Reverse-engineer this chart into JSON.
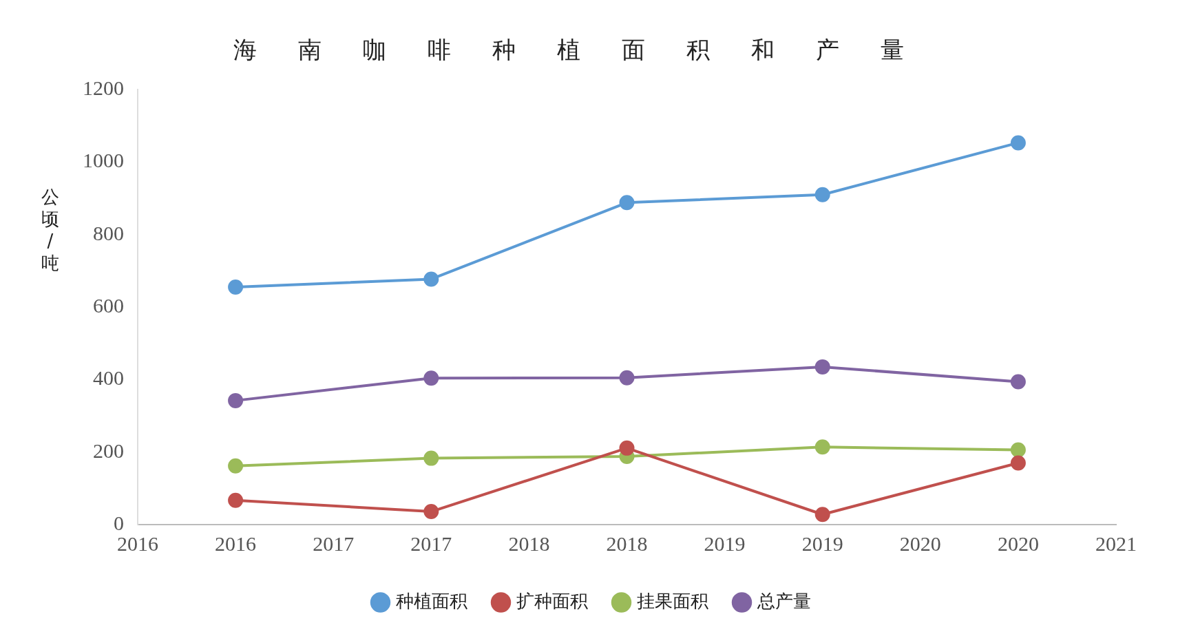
{
  "chart_data": {
    "type": "line",
    "title": "海南咖啡种植面积和产量",
    "ylabel": "公顷/吨",
    "categories": [
      "2016",
      "2016",
      "2017",
      "2017",
      "2018",
      "2018",
      "2019",
      "2019",
      "2020",
      "2020",
      "2021"
    ],
    "ylim": [
      0,
      1200
    ],
    "yticks": [
      0,
      200,
      400,
      600,
      800,
      1000,
      1200
    ],
    "series": [
      {
        "name": "种植面积",
        "color": "#5b9bd5",
        "values": [
          null,
          655,
          null,
          677,
          null,
          888,
          null,
          910,
          null,
          1053,
          null
        ]
      },
      {
        "name": "扩种面积",
        "color": "#c0504d",
        "values": [
          null,
          67,
          null,
          36,
          null,
          211,
          null,
          28,
          null,
          170,
          null
        ]
      },
      {
        "name": "挂果面积",
        "color": "#9bbb59",
        "values": [
          null,
          162,
          null,
          183,
          null,
          188,
          null,
          214,
          null,
          206,
          null
        ]
      },
      {
        "name": "总产量",
        "color": "#8064a2",
        "values": [
          null,
          342,
          null,
          404,
          null,
          405,
          null,
          435,
          null,
          394,
          null
        ]
      }
    ],
    "marker": "circle",
    "grid": false,
    "legend": "bottom"
  }
}
